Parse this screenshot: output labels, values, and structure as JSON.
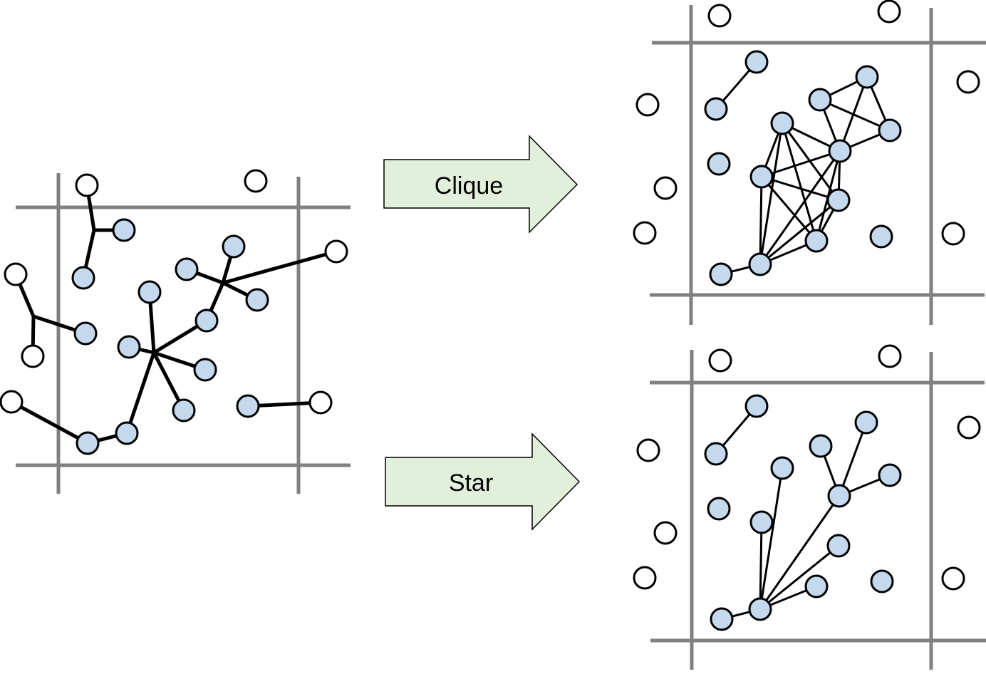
{
  "arrows": {
    "clique": {
      "label": "Clique"
    },
    "star": {
      "label": "Star"
    }
  },
  "colors": {
    "grid": "#808080",
    "node_fill_inside": "#c5d9ee",
    "node_fill_outside": "#ffffff",
    "node_stroke": "#000000",
    "edge": "#000000",
    "arrow_fill": "#e2efda",
    "arrow_stroke": "#000000"
  }
}
